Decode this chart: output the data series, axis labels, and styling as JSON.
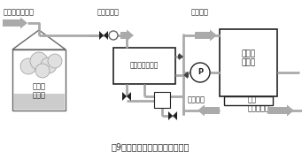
{
  "title": "図9　廃蒸気を温水として再利用",
  "bg_color": "#ffffff",
  "pipe_color": "#aaaaaa",
  "box_color": "#555555",
  "text_color": "#222222",
  "labels": {
    "process_drain": "プロセスドレン",
    "re_evap_steam": "再蒸発蒸気",
    "warm_water_recovery": "温水回収",
    "drain_tank": "ドレン\nタンク",
    "heat_exchanger": "廃蒸気熱交換器",
    "process_tank": "工程湯\nタンク",
    "cold_water": "冷水循環",
    "production": "生産\nプロセスへ",
    "pump": "P"
  }
}
